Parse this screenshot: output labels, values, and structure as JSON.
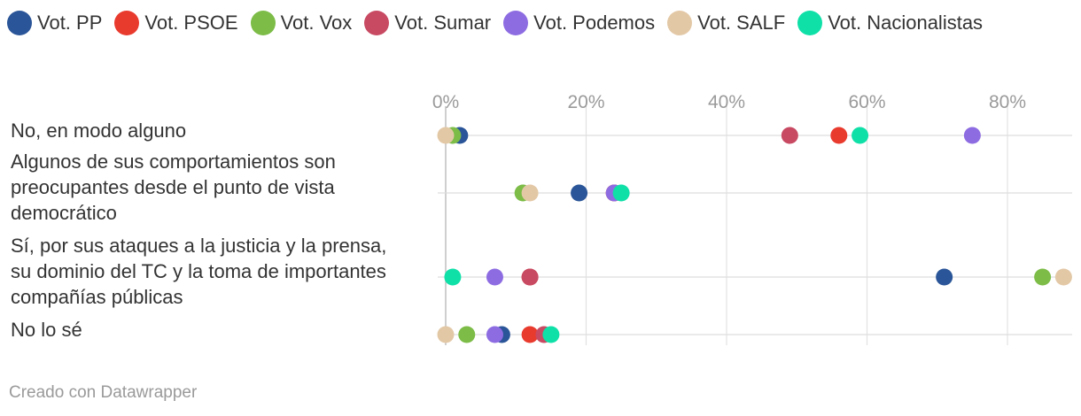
{
  "legend": [
    {
      "name": "Vot. PP",
      "color": "#2a5598"
    },
    {
      "name": "Vot. PSOE",
      "color": "#e93a2e"
    },
    {
      "name": "Vot. Vox",
      "color": "#7cbc47"
    },
    {
      "name": "Vot. Sumar",
      "color": "#c84962"
    },
    {
      "name": "Vot. Podemos",
      "color": "#8d6ce2"
    },
    {
      "name": "Vot. SALF",
      "color": "#e3c8a6"
    },
    {
      "name": "Vot. Nacionalistas",
      "color": "#0fe0a8"
    }
  ],
  "footer": "Creado con Datawrapper",
  "chart_data": {
    "type": "scatter",
    "subtype": "dot-plot",
    "title": "",
    "xlabel": "",
    "ylabel": "",
    "xlim": [
      0,
      88
    ],
    "ticks": [
      0,
      20,
      40,
      60,
      80
    ],
    "tick_labels": [
      "0%",
      "20%",
      "40%",
      "60%",
      "80%"
    ],
    "grid": true,
    "legend_position": "top-left",
    "categories": [
      [
        "No, en modo alguno"
      ],
      [
        "Algunos de sus comportamientos son",
        "preocupantes desde el punto de vista",
        "democrático"
      ],
      [
        "Sí, por sus ataques a la justicia y la prensa,",
        "su dominio del TC y la toma de importantes",
        "compañías públicas"
      ],
      [
        "No lo sé"
      ]
    ],
    "series": [
      {
        "name": "Vot. PP",
        "color": "#2a5598",
        "values": [
          2,
          19,
          71,
          8
        ]
      },
      {
        "name": "Vot. PSOE",
        "color": "#e93a2e",
        "values": [
          56,
          24,
          12,
          12
        ]
      },
      {
        "name": "Vot. Vox",
        "color": "#7cbc47",
        "values": [
          1,
          11,
          85,
          3
        ]
      },
      {
        "name": "Vot. Sumar",
        "color": "#c84962",
        "values": [
          49,
          24,
          12,
          14
        ]
      },
      {
        "name": "Vot. Podemos",
        "color": "#8d6ce2",
        "values": [
          75,
          24,
          7,
          7
        ]
      },
      {
        "name": "Vot. SALF",
        "color": "#e3c8a6",
        "values": [
          0,
          12,
          88,
          0
        ]
      },
      {
        "name": "Vot. Nacionalistas",
        "color": "#0fe0a8",
        "values": [
          59,
          25,
          1,
          15
        ]
      }
    ]
  }
}
